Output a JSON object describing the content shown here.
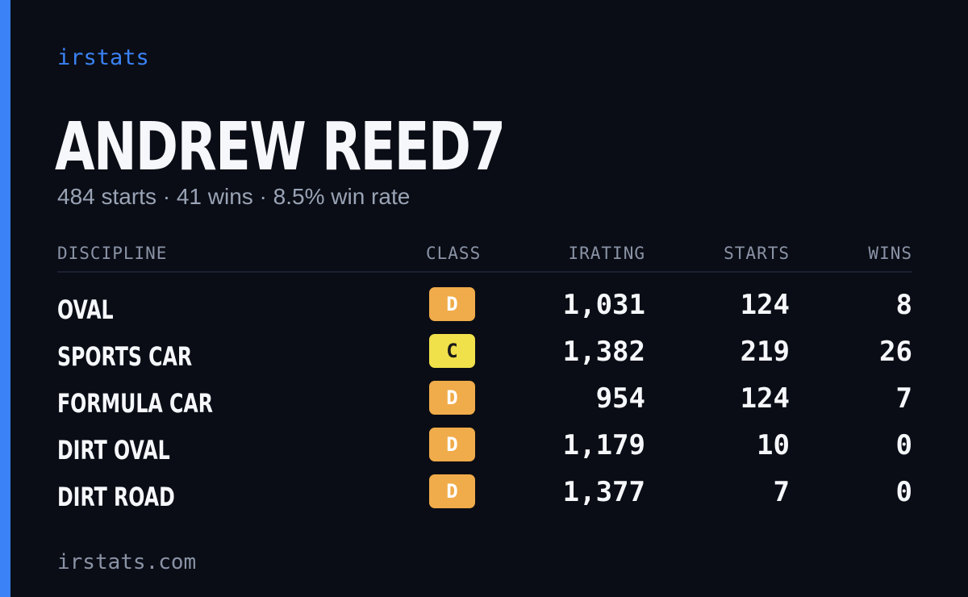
{
  "brand": "irstats",
  "driver_name": "ANDREW REED7",
  "summary": "484 starts · 41 wins · 8.5% win rate",
  "table": {
    "headers": {
      "discipline": "DISCIPLINE",
      "class": "CLASS",
      "irating": "IRATING",
      "starts": "STARTS",
      "wins": "WINS"
    },
    "rows": [
      {
        "discipline": "OVAL",
        "class": "D",
        "class_color": "#f0ab4a",
        "class_text_color": "#ffffff",
        "irating": "1,031",
        "starts": "124",
        "wins": "8"
      },
      {
        "discipline": "SPORTS CAR",
        "class": "C",
        "class_color": "#f0e04a",
        "class_text_color": "#1a1a1a",
        "irating": "1,382",
        "starts": "219",
        "wins": "26"
      },
      {
        "discipline": "FORMULA CAR",
        "class": "D",
        "class_color": "#f0ab4a",
        "class_text_color": "#ffffff",
        "irating": "954",
        "starts": "124",
        "wins": "7"
      },
      {
        "discipline": "DIRT OVAL",
        "class": "D",
        "class_color": "#f0ab4a",
        "class_text_color": "#ffffff",
        "irating": "1,179",
        "starts": "10",
        "wins": "0"
      },
      {
        "discipline": "DIRT ROAD",
        "class": "D",
        "class_color": "#f0ab4a",
        "class_text_color": "#ffffff",
        "irating": "1,377",
        "starts": "7",
        "wins": "0"
      }
    ]
  },
  "footer": "irstats.com",
  "colors": {
    "accent": "#3b82f6",
    "background": "#0a0d15"
  }
}
